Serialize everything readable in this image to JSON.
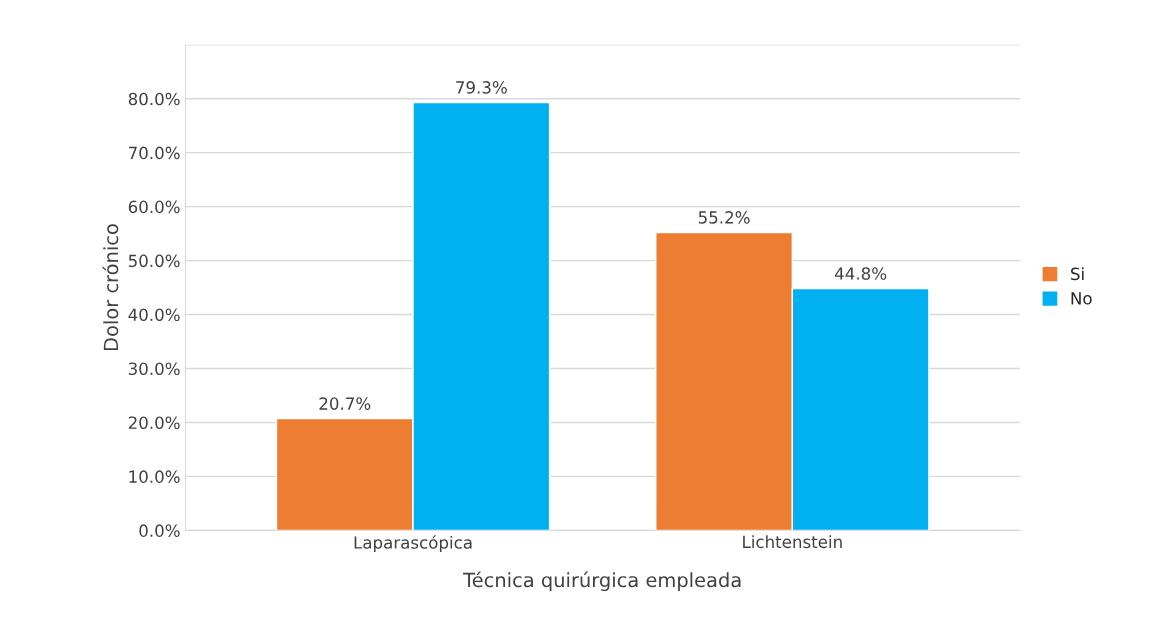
{
  "chart_data": {
    "type": "bar",
    "xlabel": "Técnica quirúrgica empleada",
    "ylabel": "Dolor crónico",
    "categories": [
      "Laparascópica",
      "Lichtenstein"
    ],
    "series": [
      {
        "name": "Si",
        "color": "#ed7d31",
        "values": [
          20.7,
          55.2
        ],
        "value_labels": [
          "20.7%",
          "55.2%"
        ]
      },
      {
        "name": "No",
        "color": "#00b0f0",
        "values": [
          79.3,
          44.8
        ],
        "value_labels": [
          "79.3%",
          "44.8%"
        ]
      }
    ],
    "ylim": [
      0,
      90
    ],
    "yticks": [
      {
        "value": 0,
        "label": "0.0%"
      },
      {
        "value": 10,
        "label": "10.0%"
      },
      {
        "value": 20,
        "label": "20.0%"
      },
      {
        "value": 30,
        "label": "30.0%"
      },
      {
        "value": 40,
        "label": "40.0%"
      },
      {
        "value": 50,
        "label": "50.0%"
      },
      {
        "value": 60,
        "label": "60.0%"
      },
      {
        "value": 70,
        "label": "70.0%"
      },
      {
        "value": 80,
        "label": "80.0%"
      },
      {
        "value": 90,
        "label": null
      }
    ],
    "grid": "y",
    "legend": "right"
  }
}
